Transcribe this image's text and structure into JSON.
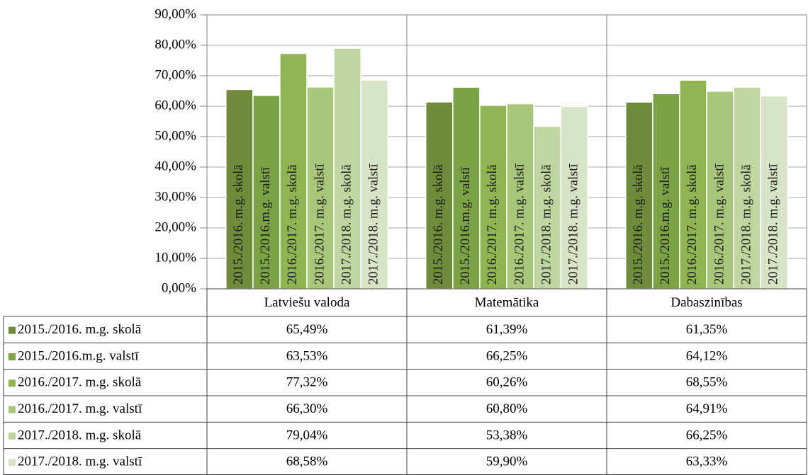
{
  "chart_data": {
    "type": "bar",
    "categories": [
      "Latviešu valoda",
      "Matemātika",
      "Dabaszinības"
    ],
    "series": [
      {
        "name": "2015./2016. m.g. skolā",
        "color": "#6e8c3a",
        "values": [
          65.49,
          61.39,
          61.35
        ],
        "value_labels": [
          "65,49%",
          "61,39%",
          "61,35%"
        ]
      },
      {
        "name": "2015./2016.m.g. valstī",
        "color": "#7ba346",
        "values": [
          63.53,
          66.25,
          64.12
        ],
        "value_labels": [
          "63,53%",
          "66,25%",
          "64,12%"
        ]
      },
      {
        "name": "2016./2017. m.g. skolā",
        "color": "#8fb552",
        "values": [
          77.32,
          60.26,
          68.55
        ],
        "value_labels": [
          "77,32%",
          "60,26%",
          "68,55%"
        ]
      },
      {
        "name": "2016./2017. m.g. valstī",
        "color": "#a8c77b",
        "values": [
          66.3,
          60.8,
          64.91
        ],
        "value_labels": [
          "66,30%",
          "60,80%",
          "64,91%"
        ]
      },
      {
        "name": "2017./2018. m.g. skolā",
        "color": "#bfd6a0",
        "values": [
          79.04,
          53.38,
          66.25
        ],
        "value_labels": [
          "79,04%",
          "53,38%",
          "66,25%"
        ]
      },
      {
        "name": "2017./2018. m.g. valstī",
        "color": "#d7e4c6",
        "values": [
          68.58,
          59.9,
          63.33
        ],
        "value_labels": [
          "68,58%",
          "59,90%",
          "63,33%"
        ]
      }
    ],
    "ylim": [
      0,
      90
    ],
    "yticks": [
      {
        "value": 0,
        "label": "0,00%"
      },
      {
        "value": 10,
        "label": "10,00%"
      },
      {
        "value": 20,
        "label": "20,00%"
      },
      {
        "value": 30,
        "label": "30,00%"
      },
      {
        "value": 40,
        "label": "40,00%"
      },
      {
        "value": 50,
        "label": "50,00%"
      },
      {
        "value": 60,
        "label": "60,00%"
      },
      {
        "value": 70,
        "label": "70,00%"
      },
      {
        "value": 80,
        "label": "80,00%"
      },
      {
        "value": 90,
        "label": "90,00%"
      }
    ],
    "grid": true
  }
}
